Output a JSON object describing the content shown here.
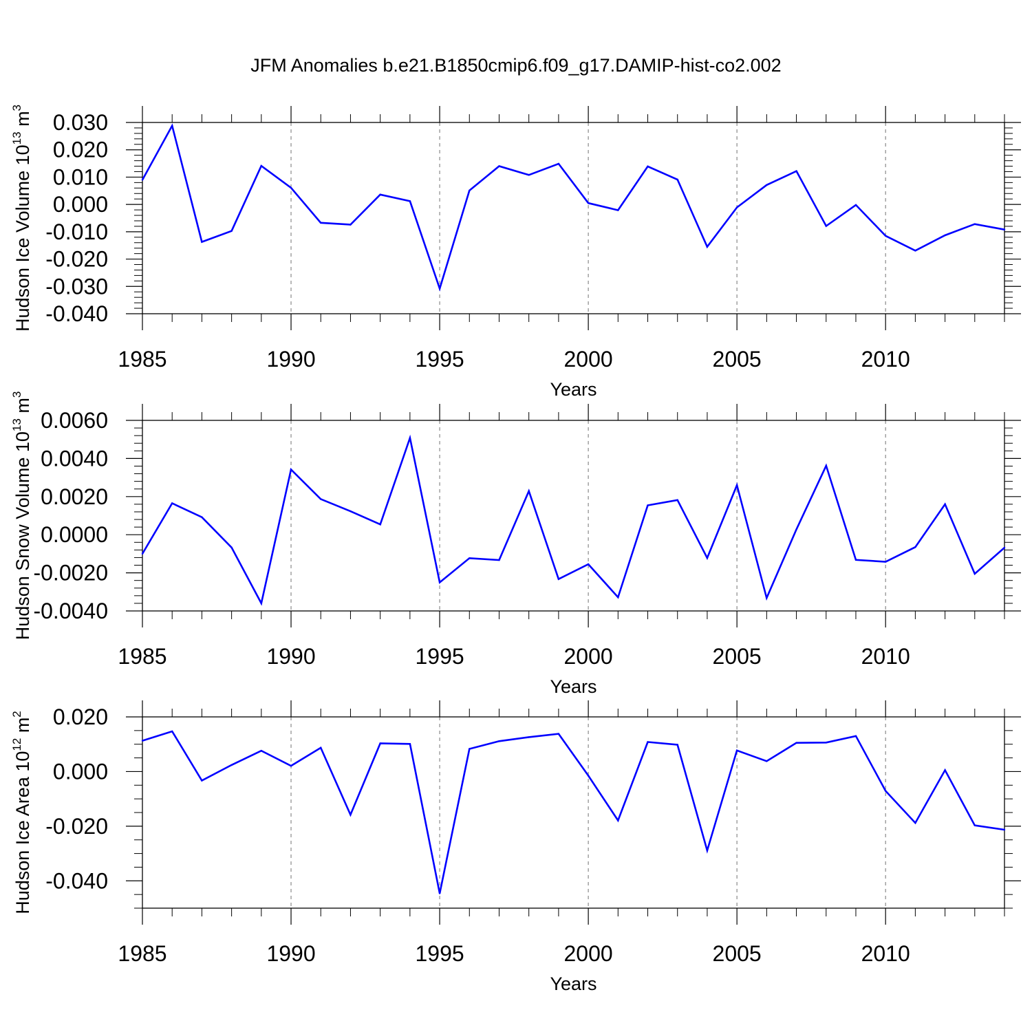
{
  "figure": {
    "title": "JFM Anomalies b.e21.B1850cmip6.f09_g17.DAMIP-hist-co2.002"
  },
  "colors": {
    "line": "#0000ff",
    "axis": "#000000",
    "grid": "#888888"
  },
  "chart_data": [
    {
      "type": "line",
      "ylabel": {
        "text": "Hudson Ice Volume 10",
        "exp": "13",
        "unit": " m",
        "unit_exp": "3"
      },
      "xlabel": "Years",
      "xlim": [
        1985,
        2014
      ],
      "ylim": [
        -0.04,
        0.03
      ],
      "yticks": [
        0.03,
        0.02,
        0.01,
        0.0,
        -0.01,
        -0.02,
        -0.03,
        -0.04
      ],
      "ytick_labels": [
        "0.030",
        "0.020",
        "0.010",
        "0.000",
        "-0.010",
        "-0.020",
        "-0.030",
        "-0.040"
      ],
      "xticks": [
        1985,
        1990,
        1995,
        2000,
        2005,
        2010
      ],
      "xtick_labels": [
        "1985",
        "1990",
        "1995",
        "2000",
        "2005",
        "2010"
      ],
      "grid_x": [
        1990,
        1995,
        2000,
        2005,
        2010
      ],
      "x": [
        1985,
        1986,
        1987,
        1988,
        1989,
        1990,
        1991,
        1992,
        1993,
        1994,
        1995,
        1996,
        1997,
        1998,
        1999,
        2000,
        2001,
        2002,
        2003,
        2004,
        2005,
        2006,
        2007,
        2008,
        2009,
        2010,
        2011,
        2012,
        2013,
        2014
      ],
      "values": [
        0.009,
        0.0288,
        -0.0137,
        -0.0097,
        0.0141,
        0.0061,
        -0.0067,
        -0.0074,
        0.0036,
        0.0012,
        -0.0308,
        0.0051,
        0.014,
        0.0108,
        0.0149,
        0.0005,
        -0.0021,
        0.0139,
        0.0091,
        -0.0155,
        -0.0011,
        0.0071,
        0.0122,
        -0.0079,
        -0.0002,
        -0.0115,
        -0.0169,
        -0.0113,
        -0.0072,
        -0.0092
      ]
    },
    {
      "type": "line",
      "ylabel": {
        "text": "Hudson Snow Volume 10",
        "exp": "13",
        "unit": " m",
        "unit_exp": "3"
      },
      "xlabel": "Years",
      "xlim": [
        1985,
        2014
      ],
      "ylim": [
        -0.004,
        0.006
      ],
      "yticks": [
        0.006,
        0.004,
        0.002,
        0.0,
        -0.002,
        -0.004
      ],
      "ytick_labels": [
        "0.0060",
        "0.0040",
        "0.0020",
        "0.0000",
        "-0.0020",
        "-0.0040"
      ],
      "xticks": [
        1985,
        1990,
        1995,
        2000,
        2005,
        2010
      ],
      "xtick_labels": [
        "1985",
        "1990",
        "1995",
        "2000",
        "2005",
        "2010"
      ],
      "grid_x": [
        1990,
        1995,
        2000,
        2005,
        2010
      ],
      "x": [
        1985,
        1986,
        1987,
        1988,
        1989,
        1990,
        1991,
        1992,
        1993,
        1994,
        1995,
        1996,
        1997,
        1998,
        1999,
        2000,
        2001,
        2002,
        2003,
        2004,
        2005,
        2006,
        2007,
        2008,
        2009,
        2010,
        2011,
        2012,
        2013,
        2014
      ],
      "values": [
        -0.001,
        0.00165,
        0.00092,
        -0.00067,
        -0.0036,
        0.00342,
        0.00187,
        0.00123,
        0.00054,
        0.00508,
        -0.0025,
        -0.00123,
        -0.00133,
        0.00229,
        -0.00233,
        -0.00155,
        -0.00328,
        0.00154,
        0.00182,
        -0.00122,
        0.0026,
        -0.00332,
        0.00028,
        0.00362,
        -0.00132,
        -0.00142,
        -0.00065,
        0.0016,
        -0.00205,
        -0.00068
      ]
    },
    {
      "type": "line",
      "ylabel": {
        "text": "Hudson Ice Area 10",
        "exp": "12",
        "unit": " m",
        "unit_exp": "2"
      },
      "xlabel": "Years",
      "xlim": [
        1985,
        2014
      ],
      "ylim": [
        -0.05,
        0.02
      ],
      "yticks": [
        0.02,
        0.0,
        -0.02,
        -0.04
      ],
      "ytick_labels": [
        "0.020",
        "0.000",
        "-0.020",
        "-0.040"
      ],
      "xticks": [
        1985,
        1990,
        1995,
        2000,
        2005,
        2010
      ],
      "xtick_labels": [
        "1985",
        "1990",
        "1995",
        "2000",
        "2005",
        "2010"
      ],
      "grid_x": [
        1990,
        1995,
        2000,
        2005,
        2010
      ],
      "x": [
        1985,
        1986,
        1987,
        1988,
        1989,
        1990,
        1991,
        1992,
        1993,
        1994,
        1995,
        1996,
        1997,
        1998,
        1999,
        2000,
        2001,
        2002,
        2003,
        2004,
        2005,
        2006,
        2007,
        2008,
        2009,
        2010,
        2011,
        2012,
        2013,
        2014
      ],
      "values": [
        0.0113,
        0.0147,
        -0.0033,
        0.0024,
        0.0076,
        0.0021,
        0.0087,
        -0.0158,
        0.0103,
        0.0101,
        -0.0446,
        0.0083,
        0.0111,
        0.0126,
        0.0138,
        -0.0015,
        -0.0179,
        0.0108,
        0.0098,
        -0.0289,
        0.0077,
        0.0038,
        0.0105,
        0.0106,
        0.013,
        -0.0071,
        -0.0188,
        0.0005,
        -0.0197,
        -0.0213
      ]
    }
  ]
}
